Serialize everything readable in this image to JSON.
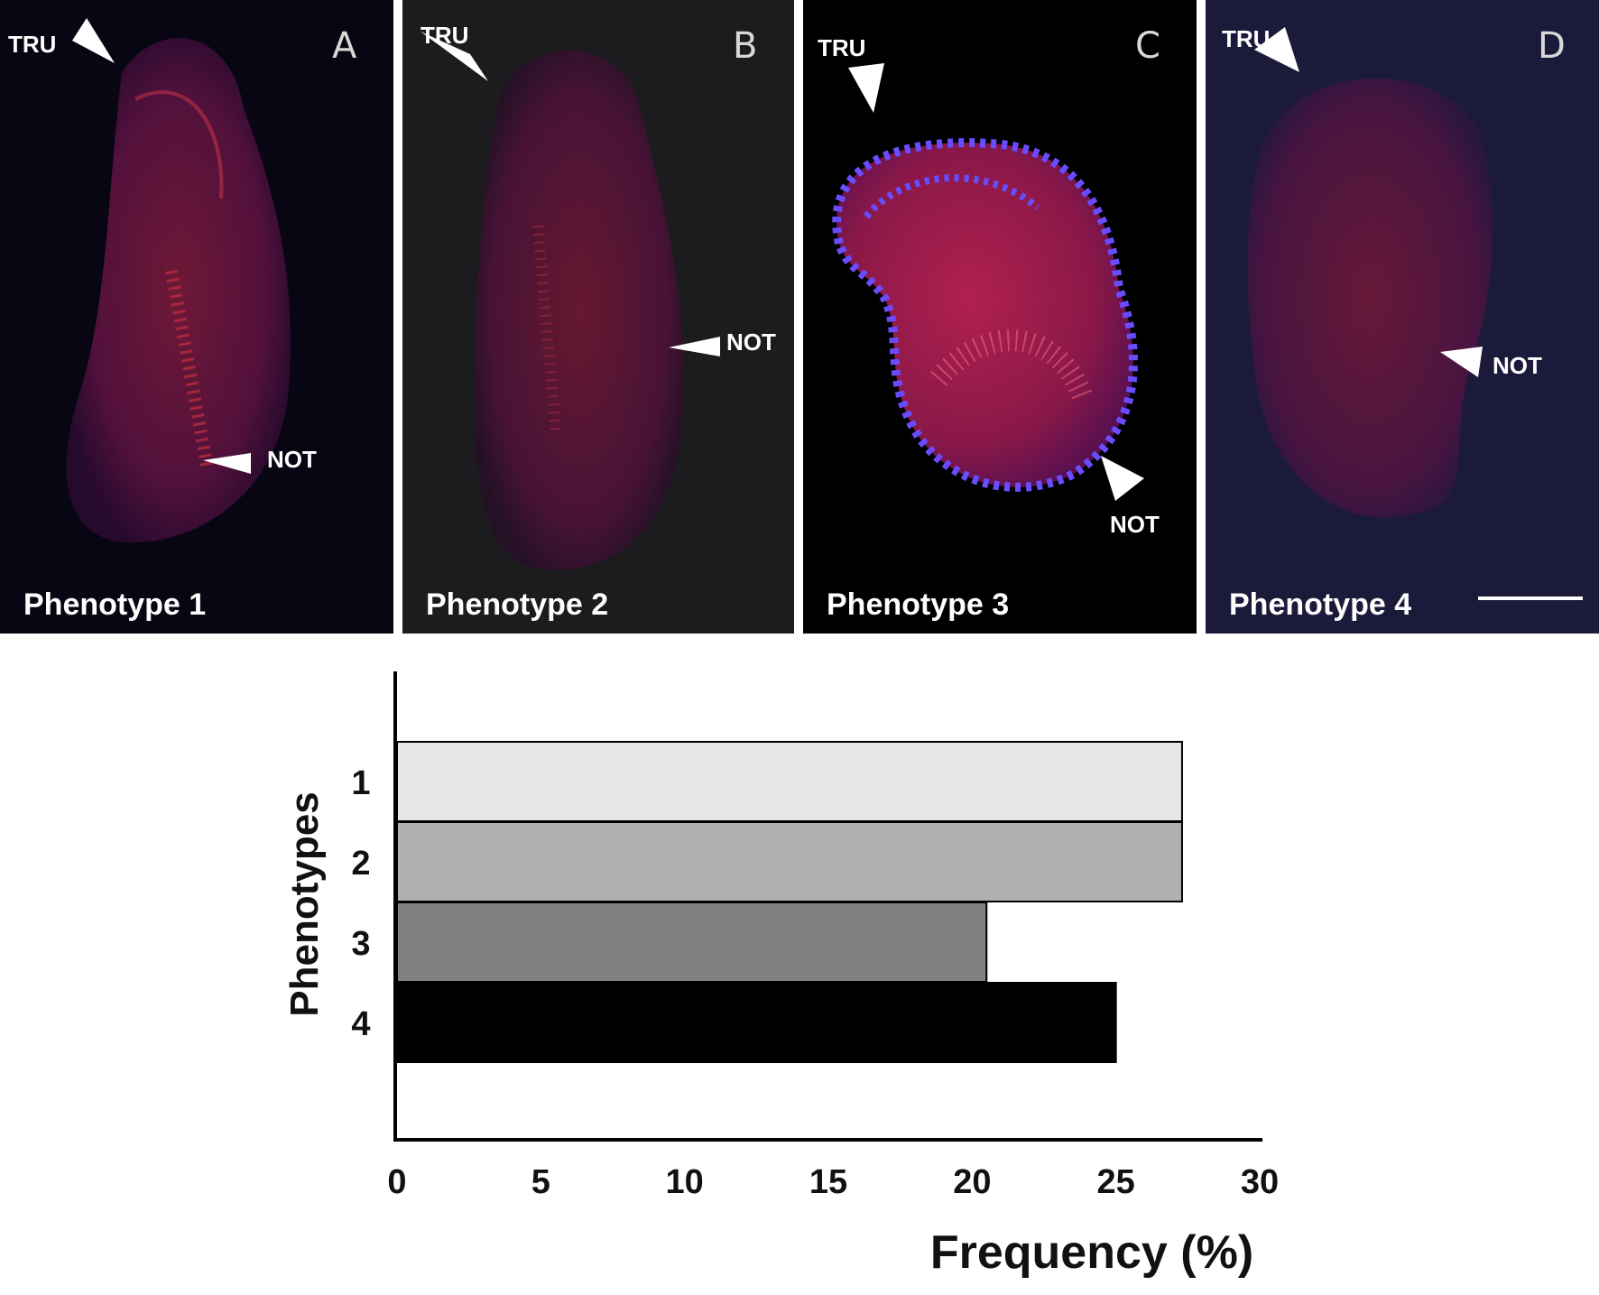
{
  "panels": [
    {
      "letter": "A",
      "caption": "Phenotype 1",
      "arrows": [
        "TRU",
        "NOT"
      ]
    },
    {
      "letter": "B",
      "caption": "Phenotype 2",
      "arrows": [
        "TRU",
        "NOT"
      ]
    },
    {
      "letter": "C",
      "caption": "Phenotype 3",
      "arrows": [
        "TRU",
        "NOT"
      ]
    },
    {
      "letter": "D",
      "caption": "Phenotype 4",
      "arrows": [
        "TRU",
        "NOT"
      ]
    }
  ],
  "chart_data": {
    "type": "bar",
    "orientation": "horizontal",
    "categories": [
      "1",
      "2",
      "3",
      "4"
    ],
    "values": [
      27.3,
      27.3,
      20.5,
      25.0
    ],
    "bar_colors": [
      "#e6e6e6",
      "#b0b0b0",
      "#808080",
      "#000000"
    ],
    "title": "",
    "xlabel": "Frequency (%)",
    "ylabel": "Phenotypes",
    "xlim": [
      0,
      30
    ],
    "xticks": [
      "0",
      "5",
      "10",
      "15",
      "20",
      "25",
      "30"
    ],
    "grid": false,
    "legend": "none"
  }
}
